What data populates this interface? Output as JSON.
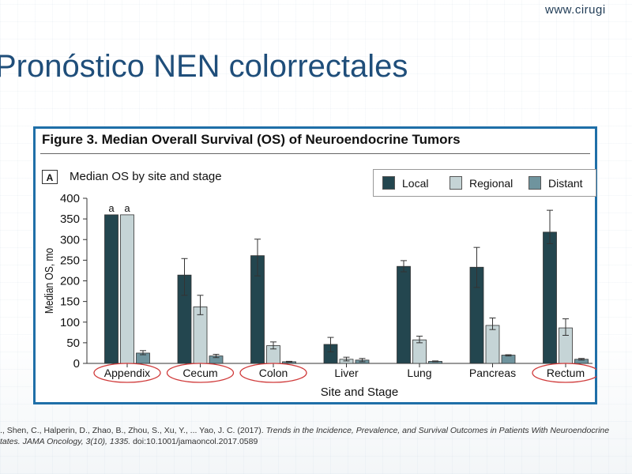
{
  "slide": {
    "site_url": "www.cirugi",
    "title": "Pronóstico NEN colorrectales"
  },
  "figure": {
    "title": "Figure 3. Median Overall Survival (OS) of Neuroendocrine Tumors",
    "panel_letter": "A",
    "panel_subtitle": "Median OS by site and stage"
  },
  "citation": {
    "line1_prefix": "., Shen, C., Halperin, D., Zhao, B., Zhou, S., Xu, Y., ... Yao, J. C. (2017). ",
    "line1_italic": "Trends in the Incidence, Prevalence, and Survival Outcomes in Patients With Neuroendocrine",
    "line2_italic": "tates. JAMA Oncology, 3(10), 1335.",
    "line2_suffix": " doi:10.1001/jamaoncol.2017.0589"
  },
  "colors": {
    "local": "#23464f",
    "regional": "#c5d4d6",
    "distant": "#6f949e",
    "highlight_ellipse": "#d03a3a",
    "figure_border": "#1f6fa8",
    "title_blue": "#1f4e7a"
  },
  "chart_data": {
    "type": "bar",
    "categories": [
      "Appendix",
      "Cecum",
      "Colon",
      "Liver",
      "Lung",
      "Pancreas",
      "Rectum"
    ],
    "series": [
      {
        "name": "Local",
        "values": [
          360,
          214,
          261,
          46,
          235,
          233,
          318
        ],
        "err_low": [
          null,
          165,
          212,
          28,
          222,
          184,
          290
        ],
        "err_high": [
          null,
          254,
          301,
          63,
          249,
          281,
          371
        ]
      },
      {
        "name": "Regional",
        "values": [
          360,
          137,
          43,
          10,
          57,
          92,
          86
        ],
        "err_low": [
          null,
          118,
          35,
          6,
          50,
          82,
          68
        ],
        "err_high": [
          null,
          165,
          52,
          15,
          66,
          110,
          108
        ]
      },
      {
        "name": "Distant",
        "values": [
          25,
          18,
          4,
          8,
          5,
          20,
          10
        ],
        "err_low": [
          21,
          14,
          3,
          4,
          4,
          18,
          8
        ],
        "err_high": [
          31,
          22,
          5,
          12,
          6,
          21,
          12
        ]
      }
    ],
    "bar_annotations": [
      {
        "category": "Appendix",
        "series": "Local",
        "text": "a"
      },
      {
        "category": "Appendix",
        "series": "Regional",
        "text": "a"
      }
    ],
    "highlighted_categories": [
      "Appendix",
      "Cecum",
      "Colon",
      "Rectum"
    ],
    "xlabel": "Site and Stage",
    "ylabel": "Median OS, mo",
    "ylim": [
      0,
      400
    ],
    "yticks": [
      0,
      50,
      100,
      150,
      200,
      250,
      300,
      350,
      400
    ],
    "grid": false,
    "legend_position": "top-right"
  }
}
